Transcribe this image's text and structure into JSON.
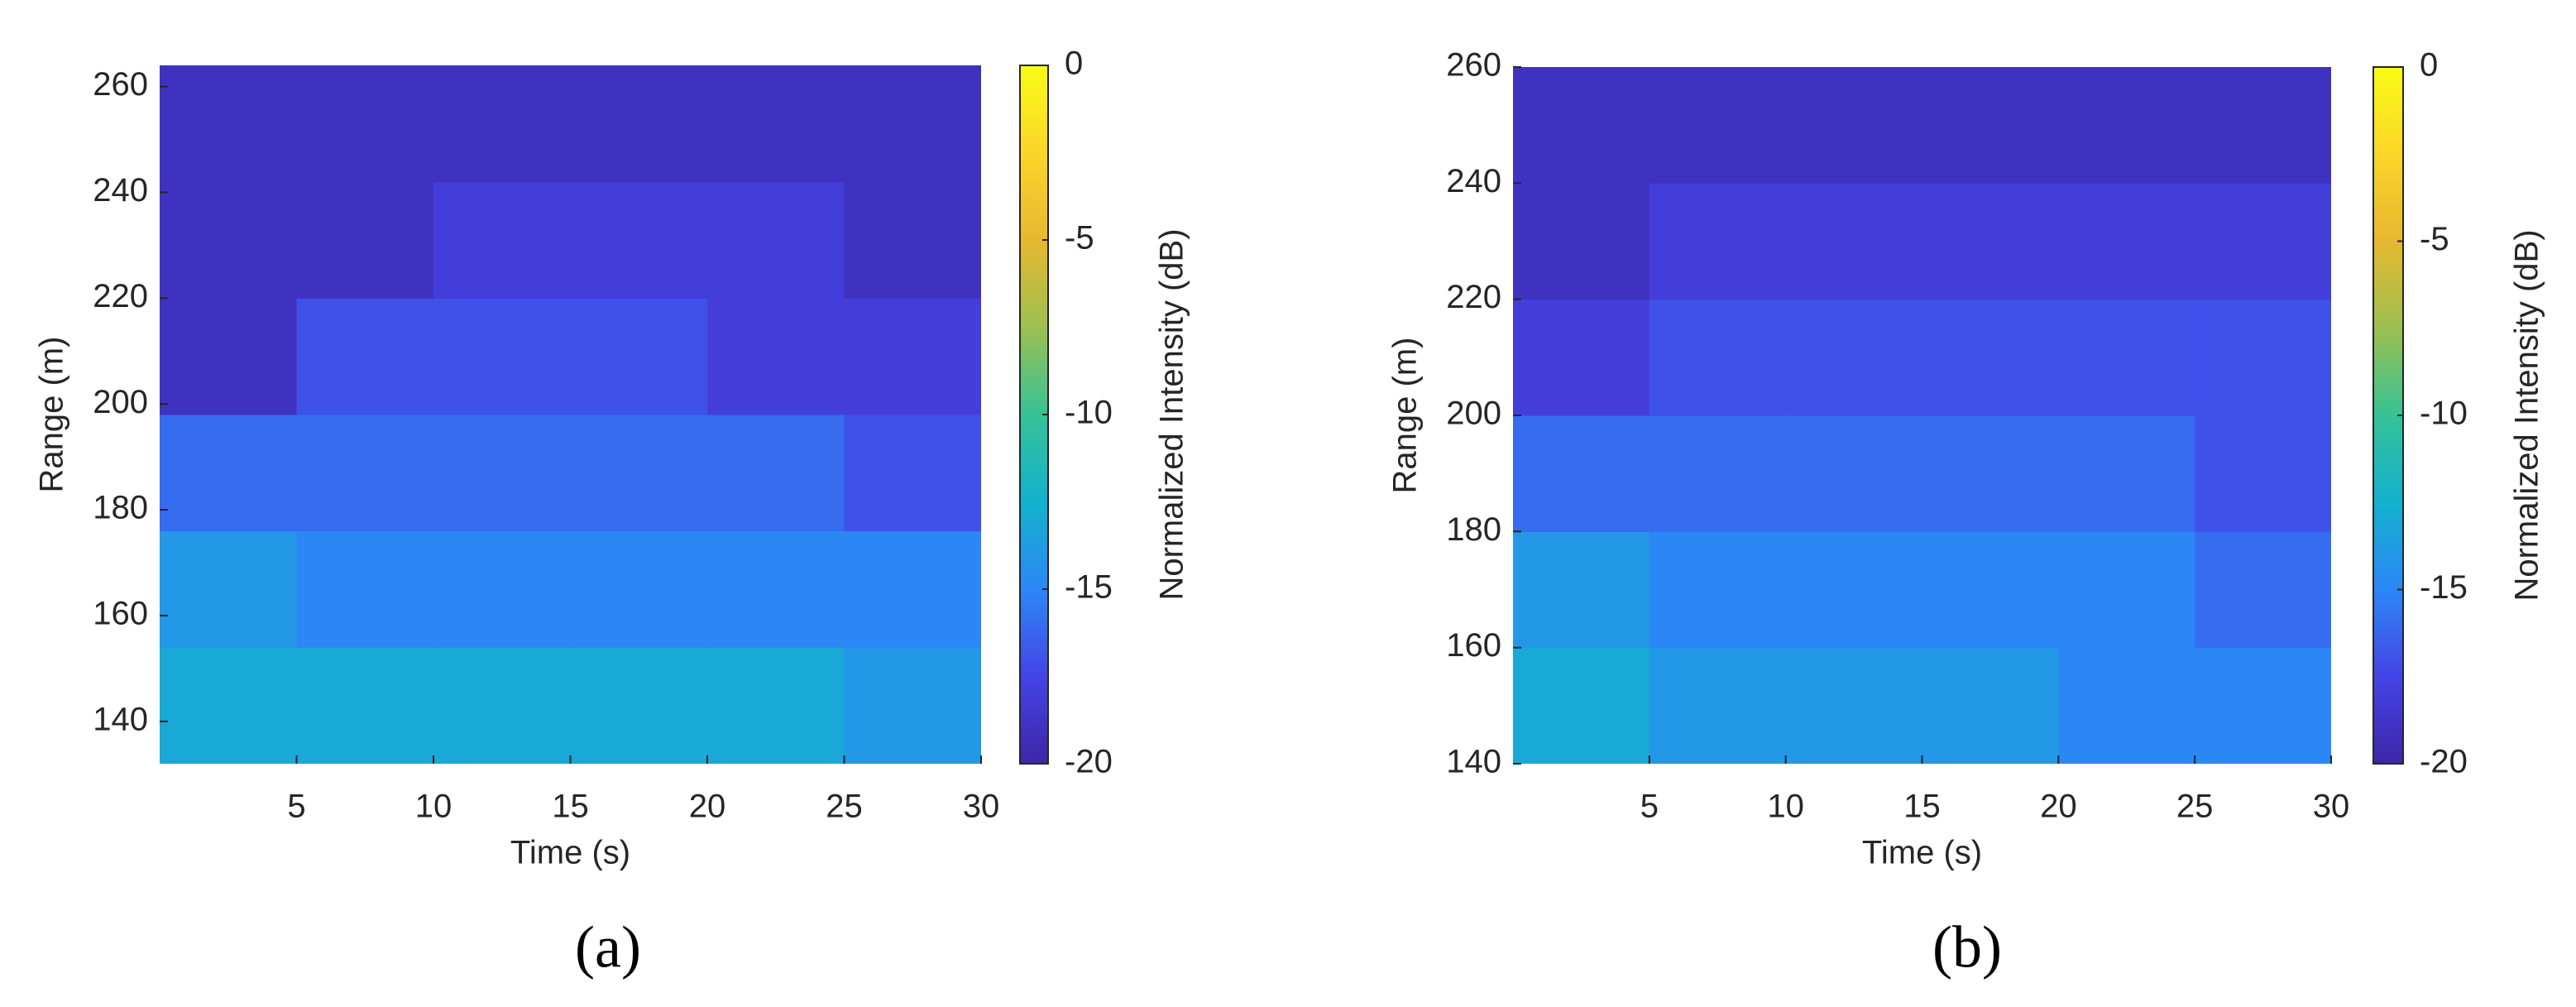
{
  "chart_data": [
    {
      "type": "heatmap",
      "label": "(a)",
      "xlabel": "Time (s)",
      "ylabel": "Range (m)",
      "xlim": [
        0,
        30
      ],
      "xticks": [
        5,
        10,
        15,
        20,
        25,
        30
      ],
      "ylim": [
        132,
        264
      ],
      "yticks": [
        140,
        160,
        180,
        200,
        220,
        240,
        260
      ],
      "x": [
        2.5,
        7.5,
        12.5,
        17.5,
        22.5,
        27.5
      ],
      "y": [
        143,
        165,
        187,
        209,
        231,
        253
      ],
      "z": [
        [
          -13,
          -13,
          -13,
          -13,
          -13,
          -14
        ],
        [
          -14,
          -15,
          -15,
          -15,
          -15,
          -15
        ],
        [
          -16,
          -16,
          -16,
          -16,
          -16,
          -17
        ],
        [
          -19,
          -17,
          -17,
          -17,
          -18,
          -18
        ],
        [
          -19,
          -19,
          -18,
          -18,
          -18,
          -19
        ],
        [
          -19,
          -19,
          -19,
          -19,
          -19,
          -19
        ]
      ],
      "colorbar_label": "Normalized Intensity (dB)",
      "clim": [
        -20,
        0
      ],
      "cticks": [
        -20,
        -15,
        -10,
        -5,
        0
      ],
      "colormap": [
        "#3e26a8",
        "#4444e6",
        "#2c87f6",
        "#14b1cf",
        "#35c296",
        "#9cc050",
        "#e6b831",
        "#fbd52a",
        "#f9fb15"
      ]
    },
    {
      "type": "heatmap",
      "label": "(b)",
      "xlabel": "Time (s)",
      "ylabel": "Range (m)",
      "xlim": [
        0,
        30
      ],
      "xticks": [
        5,
        10,
        15,
        20,
        25,
        30
      ],
      "ylim": [
        140,
        260
      ],
      "yticks": [
        140,
        160,
        180,
        200,
        220,
        240,
        260
      ],
      "x": [
        2.5,
        7.5,
        12.5,
        17.5,
        22.5,
        27.5
      ],
      "y": [
        150,
        170,
        190,
        210,
        230,
        250
      ],
      "z": [
        [
          -13,
          -14,
          -14,
          -14,
          -15,
          -15
        ],
        [
          -14,
          -15,
          -15,
          -15,
          -15,
          -16
        ],
        [
          -16,
          -16,
          -16,
          -16,
          -16,
          -17
        ],
        [
          -18,
          -17,
          -17,
          -17,
          -17,
          -17
        ],
        [
          -19,
          -18,
          -18,
          -18,
          -18,
          -18
        ],
        [
          -19,
          -19,
          -19,
          -19,
          -19,
          -19
        ]
      ],
      "colorbar_label": "Normalized Intensity (dB)",
      "clim": [
        -20,
        0
      ],
      "cticks": [
        -20,
        -15,
        -10,
        -5,
        0
      ],
      "colormap": [
        "#3e26a8",
        "#4444e6",
        "#2c87f6",
        "#14b1cf",
        "#35c296",
        "#9cc050",
        "#e6b831",
        "#fbd52a",
        "#f9fb15"
      ]
    }
  ]
}
